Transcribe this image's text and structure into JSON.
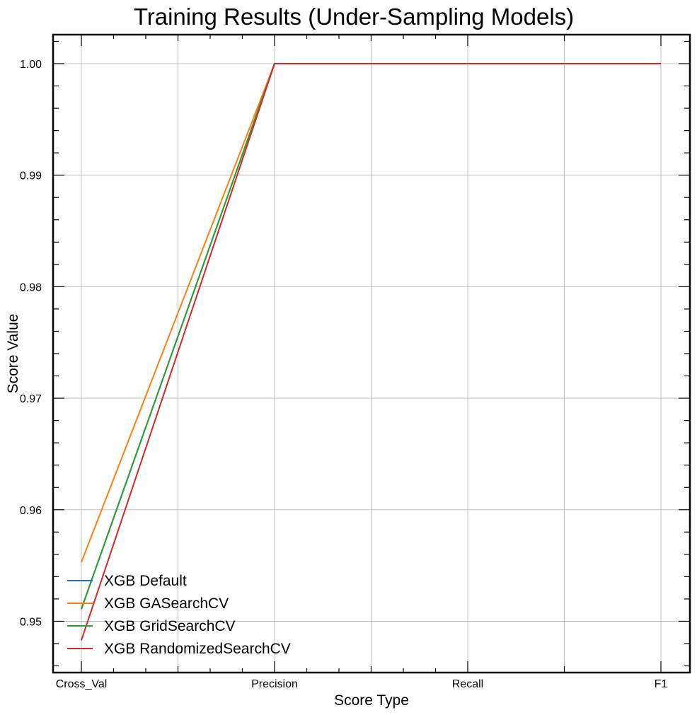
{
  "chart_data": {
    "type": "line",
    "title": "Training Results (Under-Sampling Models)",
    "xlabel": "Score Type",
    "ylabel": "Score Value",
    "categories": [
      "Cross_Val",
      "Precision",
      "Recall",
      "F1"
    ],
    "ylim": [
      0.9454,
      1.0026
    ],
    "yticks": [
      0.95,
      0.96,
      0.97,
      0.98,
      0.99,
      1.0
    ],
    "ytick_labels": [
      "0.95",
      "0.96",
      "0.97",
      "0.98",
      "0.99",
      "1.00"
    ],
    "grid": true,
    "legend_position": "bottom-left",
    "series": [
      {
        "name": "XGB Default",
        "color": "#1f77b4",
        "values": [
          0.9511,
          1.0,
          1.0,
          1.0
        ]
      },
      {
        "name": "XGB GASearchCV",
        "color": "#ff7f0e",
        "values": [
          0.9553,
          1.0,
          1.0,
          1.0
        ]
      },
      {
        "name": "XGB GridSearchCV",
        "color": "#2ca02c",
        "values": [
          0.9511,
          1.0,
          1.0,
          1.0
        ]
      },
      {
        "name": "XGB RandomizedSearchCV",
        "color": "#d62728",
        "values": [
          0.9483,
          1.0,
          1.0,
          1.0
        ]
      }
    ]
  }
}
